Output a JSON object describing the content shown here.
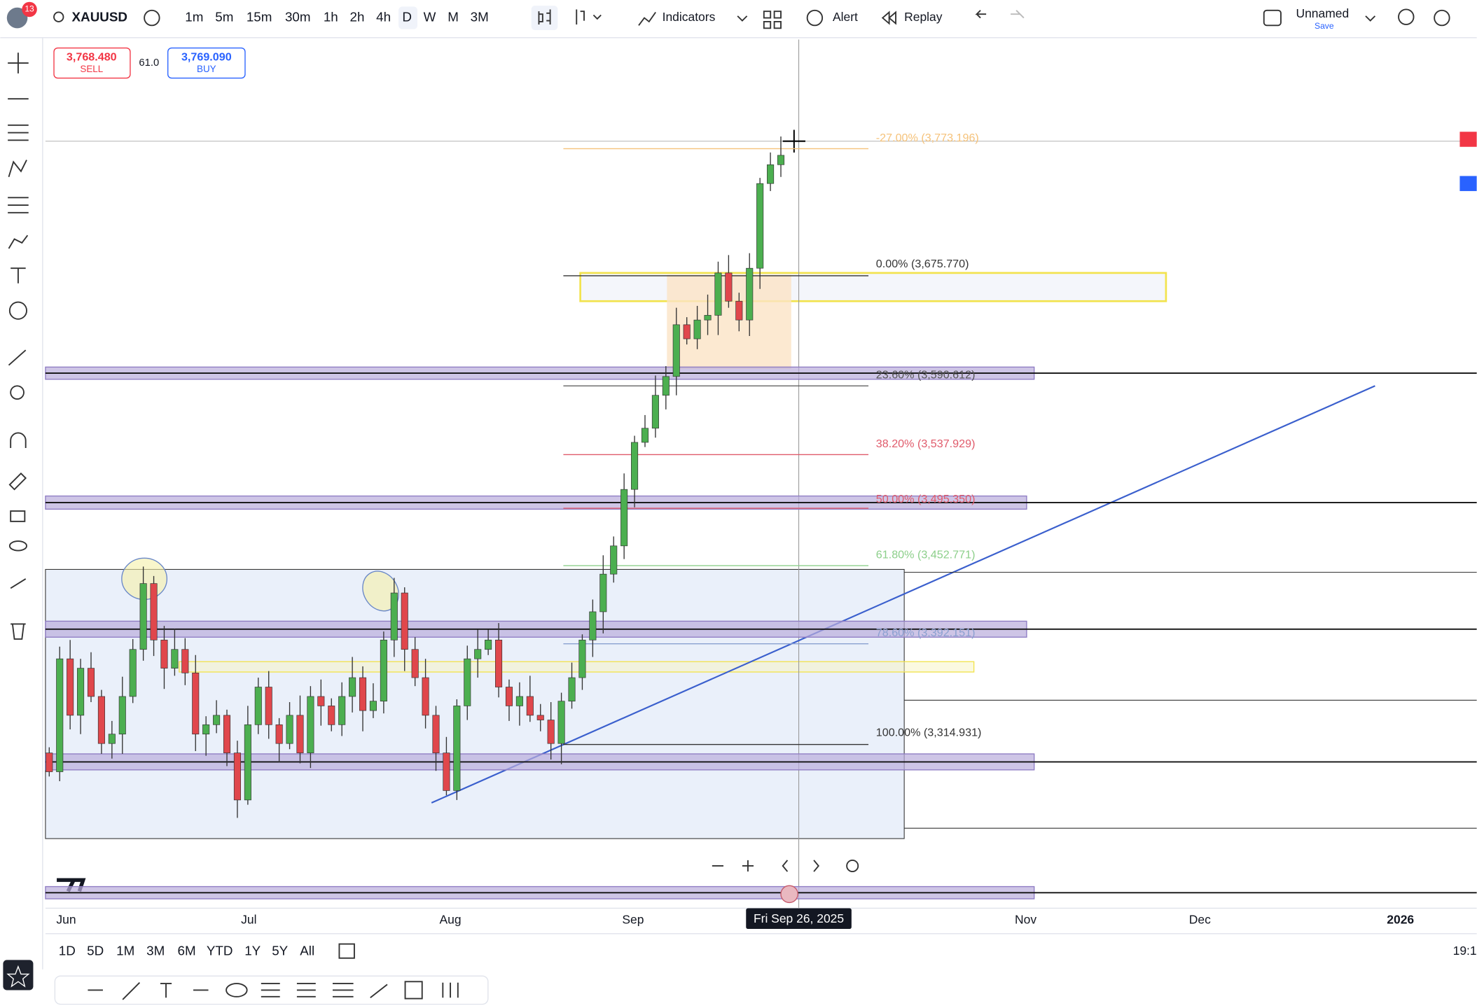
{
  "header": {
    "badge": "13",
    "symbol": "XAUUSD",
    "timeframes": [
      "1m",
      "5m",
      "15m",
      "30m",
      "1h",
      "2h",
      "4h",
      "D",
      "W",
      "M",
      "3M"
    ],
    "indicators": "Indicators",
    "alert": "Alert",
    "replay": "Replay",
    "layout_name": "Unnamed",
    "save": "Save"
  },
  "order_panel": {
    "sell_price": "3,768.480",
    "sell_label": "SELL",
    "spread": "61.0",
    "buy_price": "3,769.090",
    "buy_label": "BUY"
  },
  "fib_levels": [
    "-27.00% (3,773.196)",
    "0.00% (3,675.770)",
    "23.60% (3,590.612)",
    "38.20% (3,537.929)",
    "50.00% (3,495.350)",
    "61.80% (3,452.771)",
    "78.60% (3,392.151)",
    "100.00% (3,314.931)"
  ],
  "x_axis": {
    "labels": [
      "Jun",
      "Jul",
      "Aug",
      "Sep",
      "Nov",
      "Dec",
      "2026"
    ],
    "crosshair_date": "Fri Sep 26, 2025"
  },
  "bottom_bar": {
    "ranges": [
      "1D",
      "5D",
      "1M",
      "3M",
      "6M",
      "YTD",
      "1Y",
      "5Y",
      "All"
    ],
    "time": "19:1"
  }
}
